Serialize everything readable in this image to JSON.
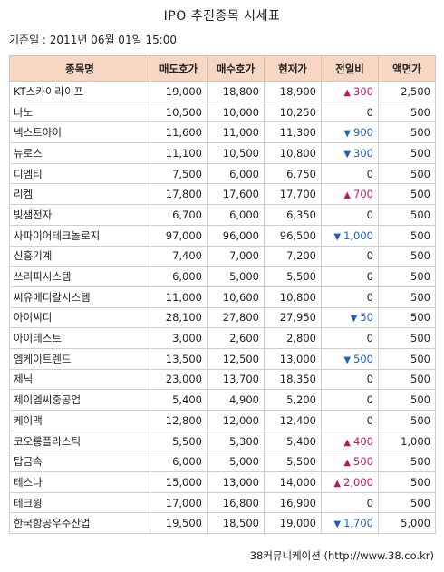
{
  "title": "IPO 추진종목 시세표",
  "base_date": "기준일 : 2011년 06월 01일 15:00",
  "columns": [
    "종목명",
    "매도호가",
    "매수호가",
    "현재가",
    "전일비",
    "액면가"
  ],
  "colors": {
    "header_bg": "#f7d7c4",
    "up": "#c2185b",
    "down": "#1f5fbf",
    "border": "#cfcfcf"
  },
  "rows": [
    {
      "name": "KT스카이라이프",
      "ask": "19,000",
      "bid": "18,800",
      "price": "18,900",
      "change": "300",
      "direction": "up",
      "par": "2,500"
    },
    {
      "name": "나노",
      "ask": "10,500",
      "bid": "10,000",
      "price": "10,250",
      "change": "0",
      "direction": "flat",
      "par": "500"
    },
    {
      "name": "넥스트아이",
      "ask": "11,600",
      "bid": "11,000",
      "price": "11,300",
      "change": "900",
      "direction": "down",
      "par": "500"
    },
    {
      "name": "뉴로스",
      "ask": "11,100",
      "bid": "10,500",
      "price": "10,800",
      "change": "300",
      "direction": "down",
      "par": "500"
    },
    {
      "name": "디엠티",
      "ask": "7,500",
      "bid": "6,000",
      "price": "6,750",
      "change": "0",
      "direction": "flat",
      "par": "500"
    },
    {
      "name": "리켐",
      "ask": "17,800",
      "bid": "17,600",
      "price": "17,700",
      "change": "700",
      "direction": "up",
      "par": "500"
    },
    {
      "name": "빛샘전자",
      "ask": "6,700",
      "bid": "6,000",
      "price": "6,350",
      "change": "0",
      "direction": "flat",
      "par": "500"
    },
    {
      "name": "사파이어테크놀로지",
      "ask": "97,000",
      "bid": "96,000",
      "price": "96,500",
      "change": "1,000",
      "direction": "down",
      "par": "500"
    },
    {
      "name": "신흥기계",
      "ask": "7,400",
      "bid": "7,000",
      "price": "7,200",
      "change": "0",
      "direction": "flat",
      "par": "500"
    },
    {
      "name": "쓰리피시스템",
      "ask": "6,000",
      "bid": "5,000",
      "price": "5,500",
      "change": "0",
      "direction": "flat",
      "par": "500"
    },
    {
      "name": "씨유메디칼시스템",
      "ask": "11,000",
      "bid": "10,600",
      "price": "10,800",
      "change": "0",
      "direction": "flat",
      "par": "500"
    },
    {
      "name": "아이씨디",
      "ask": "28,100",
      "bid": "27,800",
      "price": "27,950",
      "change": "50",
      "direction": "down",
      "par": "500"
    },
    {
      "name": "아이테스트",
      "ask": "3,000",
      "bid": "2,600",
      "price": "2,800",
      "change": "0",
      "direction": "flat",
      "par": "500"
    },
    {
      "name": "엠케이트렌드",
      "ask": "13,500",
      "bid": "12,500",
      "price": "13,000",
      "change": "500",
      "direction": "down",
      "par": "500"
    },
    {
      "name": "제닉",
      "ask": "23,000",
      "bid": "13,700",
      "price": "18,350",
      "change": "0",
      "direction": "flat",
      "par": "500"
    },
    {
      "name": "제이엠씨중공업",
      "ask": "5,400",
      "bid": "4,900",
      "price": "5,200",
      "change": "0",
      "direction": "flat",
      "par": "500"
    },
    {
      "name": "케이맥",
      "ask": "12,800",
      "bid": "12,000",
      "price": "12,400",
      "change": "0",
      "direction": "flat",
      "par": "500"
    },
    {
      "name": "코오롱플라스틱",
      "ask": "5,500",
      "bid": "5,300",
      "price": "5,400",
      "change": "400",
      "direction": "up",
      "par": "1,000"
    },
    {
      "name": "탑금속",
      "ask": "6,000",
      "bid": "5,000",
      "price": "5,500",
      "change": "500",
      "direction": "up",
      "par": "500"
    },
    {
      "name": "테스나",
      "ask": "15,000",
      "bid": "13,000",
      "price": "14,000",
      "change": "2,000",
      "direction": "up",
      "par": "500"
    },
    {
      "name": "테크윙",
      "ask": "17,000",
      "bid": "16,800",
      "price": "16,900",
      "change": "0",
      "direction": "flat",
      "par": "500"
    },
    {
      "name": "한국항공우주산업",
      "ask": "19,500",
      "bid": "18,500",
      "price": "19,000",
      "change": "1,700",
      "direction": "down",
      "par": "5,000"
    }
  ],
  "source": "38커뮤니케이션 (http://www.38.co.kr)"
}
